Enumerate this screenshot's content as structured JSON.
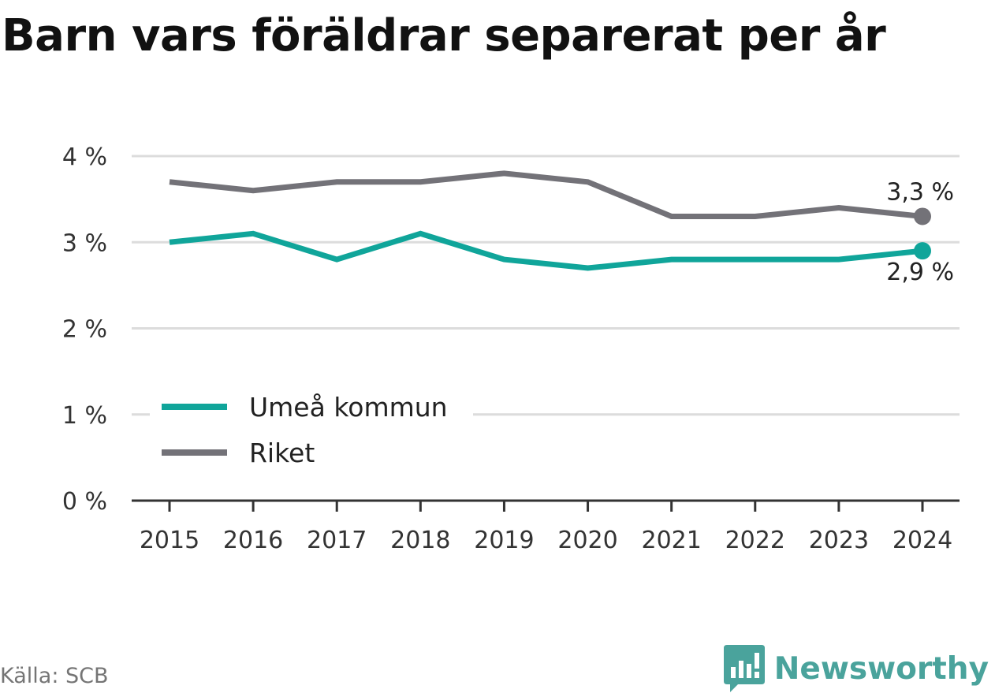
{
  "title": "Barn vars föräldrar separerat per år",
  "source": "Källa: SCB",
  "brand": "Newsworthy",
  "colors": {
    "umea": "#10a59a",
    "riket": "#737278",
    "grid": "#dcdcdc",
    "axis": "#333333",
    "text": "#333333",
    "brand": "#4aa39c"
  },
  "chart_data": {
    "type": "line",
    "x": [
      "2015",
      "2016",
      "2017",
      "2018",
      "2019",
      "2020",
      "2021",
      "2022",
      "2023",
      "2024"
    ],
    "series": [
      {
        "name": "Umeå kommun",
        "color": "#10a59a",
        "values": [
          3.0,
          3.1,
          2.8,
          3.1,
          2.8,
          2.7,
          2.8,
          2.8,
          2.8,
          2.9
        ],
        "end_label": "2,9 %"
      },
      {
        "name": "Riket",
        "color": "#737278",
        "values": [
          3.7,
          3.6,
          3.7,
          3.7,
          3.8,
          3.7,
          3.3,
          3.3,
          3.4,
          3.3
        ],
        "end_label": "3,3 %"
      }
    ],
    "ylim": [
      0,
      4
    ],
    "yticks": [
      0,
      1,
      2,
      3,
      4
    ],
    "ytick_labels": [
      "0 %",
      "1 %",
      "2 %",
      "3 %",
      "4 %"
    ],
    "grid": true,
    "legend_position": "bottom-left"
  }
}
